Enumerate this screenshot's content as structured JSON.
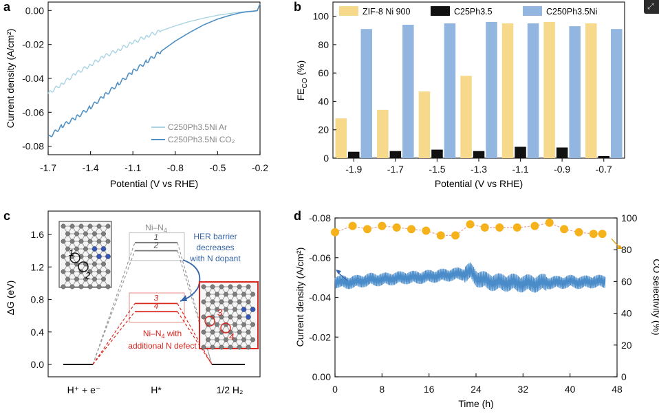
{
  "figure": {
    "corner_icon": "expand-icon",
    "colors": {
      "light_blue": "#a9d4e3",
      "mid_blue": "#4f8fc3",
      "bar_yellow": "#f7d98b",
      "bar_black": "#111111",
      "bar_blue": "#92b6df",
      "orange": "#f6b21a",
      "red": "#d9261f",
      "gray": "#8a8a8a",
      "curr_blue": "#4a8cc9",
      "arrow_blue": "#3564a8"
    }
  },
  "chart_data": [
    {
      "panel": "a",
      "type": "line",
      "xlabel": "Potential (V vs RHE)",
      "ylabel": "Current density (A/cm²)",
      "xlim": [
        -1.7,
        -0.2
      ],
      "ylim": [
        -0.085,
        0.005
      ],
      "xticks": [
        "-1.7",
        "-1.4",
        "-1.1",
        "-0.8",
        "-0.5",
        "-0.2"
      ],
      "yticks": [
        "0.00",
        "-0.02",
        "-0.04",
        "-0.06",
        "-0.08"
      ],
      "series": [
        {
          "name": "C250Ph3.5Ni Ar",
          "x": [
            -1.7,
            -1.6,
            -1.5,
            -1.4,
            -1.3,
            -1.2,
            -1.1,
            -1.0,
            -0.9,
            -0.8,
            -0.7,
            -0.6,
            -0.5,
            -0.42,
            -0.35,
            -0.3,
            -0.25,
            -0.22,
            -0.2
          ],
          "y": [
            -0.049,
            -0.043,
            -0.037,
            -0.032,
            -0.027,
            -0.023,
            -0.019,
            -0.015,
            -0.012,
            -0.009,
            -0.0065,
            -0.0045,
            -0.0028,
            -0.0018,
            -0.001,
            -0.0006,
            -0.0003,
            0.0,
            0.004
          ]
        },
        {
          "name": "C250Ph3.5Ni CO₂",
          "x": [
            -1.7,
            -1.6,
            -1.5,
            -1.4,
            -1.3,
            -1.2,
            -1.1,
            -1.0,
            -0.9,
            -0.8,
            -0.7,
            -0.6,
            -0.5,
            -0.42,
            -0.35,
            -0.3,
            -0.25,
            -0.22,
            -0.2
          ],
          "y": [
            -0.075,
            -0.068,
            -0.063,
            -0.057,
            -0.05,
            -0.043,
            -0.036,
            -0.03,
            -0.024,
            -0.018,
            -0.013,
            -0.0085,
            -0.005,
            -0.003,
            -0.0015,
            -0.0008,
            -0.0004,
            -0.0001,
            0.004
          ]
        }
      ]
    },
    {
      "panel": "b",
      "type": "bar",
      "xlabel": "Potential (V vs RHE)",
      "ylabel_main": "FE",
      "ylabel_sub": "CO",
      "ylabel_unit": " (%)",
      "ylim": [
        0,
        110
      ],
      "yticks": [
        "0",
        "20",
        "40",
        "60",
        "80",
        "100"
      ],
      "categories": [
        "-1.9",
        "-1.7",
        "-1.5",
        "-1.3",
        "-1.1",
        "-0.9",
        "-0.7"
      ],
      "series": [
        {
          "name": "ZIF-8 Ni 900",
          "values": [
            28,
            34,
            47,
            58,
            95,
            96,
            95
          ]
        },
        {
          "name": "C25Ph3.5",
          "values": [
            4.5,
            5,
            6,
            5,
            8,
            7.5,
            1.5
          ]
        },
        {
          "name": "C250Ph3.5Ni",
          "values": [
            91,
            94,
            95,
            96,
            95,
            93,
            91
          ]
        }
      ]
    },
    {
      "panel": "c",
      "type": "diagram",
      "ylabel": "ΔG (eV)",
      "ylim": [
        -0.1,
        1.75
      ],
      "yticks": [
        "0.0",
        "0.4",
        "0.8",
        "1.2",
        "1.6"
      ],
      "xlabels": [
        "H⁺ + e⁻",
        "H*",
        "1/2 H₂"
      ],
      "levels_gray": [
        1.5,
        1.4
      ],
      "levels_red": [
        0.75,
        0.65
      ],
      "level_labels_gray": [
        "1",
        "2"
      ],
      "level_labels_red": [
        "3",
        "4"
      ],
      "label_nin4": "Ni–N",
      "label_nin4_sub": "4",
      "label_red_line1": "Ni–N",
      "label_red_line1_sub": "4",
      "label_red_line1_end": " with",
      "label_red_line2": "additional N defect",
      "her_text": [
        "HER barrier",
        "decreases",
        "with N dopant"
      ],
      "inset1_labels": [
        "1",
        "2"
      ],
      "inset2_labels": [
        "3",
        "4"
      ]
    },
    {
      "panel": "d",
      "type": "line",
      "xlabel": "Time (h)",
      "ylabel_left": "Current density (A/cm²)",
      "ylabel_right": "CO selectivity (%)",
      "xlim": [
        0,
        48
      ],
      "ylim_left": [
        0,
        -0.08
      ],
      "ylim_right": [
        0,
        100
      ],
      "xticks": [
        "0",
        "8",
        "16",
        "24",
        "32",
        "40",
        "48"
      ],
      "yticks_left": [
        "-0.08",
        "-0.06",
        "-0.04",
        "-0.02",
        "0.00"
      ],
      "yticks_right": [
        "100",
        "80",
        "60",
        "40",
        "20",
        "0"
      ],
      "selectivity": {
        "x": [
          0,
          3,
          5.5,
          8,
          10.5,
          13,
          15.5,
          18,
          20.5,
          23,
          25.5,
          28,
          31,
          34,
          36.5,
          39,
          41.5,
          44,
          45.5
        ],
        "y": [
          91,
          95,
          93,
          95,
          94,
          93,
          92,
          89,
          89,
          96,
          94,
          94,
          94,
          95,
          97,
          93,
          91,
          90,
          90
        ]
      },
      "current": {
        "x": [
          0,
          2,
          4,
          6,
          8,
          10,
          12,
          14,
          16,
          18,
          20,
          22,
          23,
          24,
          26,
          28,
          30,
          32,
          34,
          36,
          38,
          40,
          42,
          44,
          46
        ],
        "y": [
          -0.048,
          -0.0475,
          -0.048,
          -0.049,
          -0.049,
          -0.0495,
          -0.05,
          -0.05,
          -0.0505,
          -0.051,
          -0.0515,
          -0.052,
          -0.053,
          -0.05,
          -0.048,
          -0.0475,
          -0.0475,
          -0.047,
          -0.047,
          -0.0475,
          -0.0475,
          -0.048,
          -0.0475,
          -0.048,
          -0.048
        ],
        "amplitude": 0.004
      }
    }
  ],
  "panel_letters": [
    "a",
    "b",
    "c",
    "d"
  ]
}
